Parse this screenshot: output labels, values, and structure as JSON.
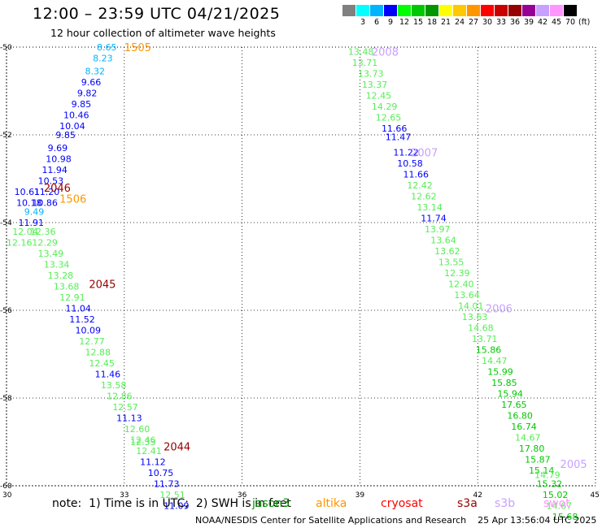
{
  "title": "12:00 – 23:59 UTC 04/21/2025",
  "subtitle": "12 hour collection of altimeter wave heights",
  "legend": {
    "unit": "(ft)",
    "bins": [
      {
        "label": "",
        "color": "#808080"
      },
      {
        "label": "3",
        "color": "#00ffff"
      },
      {
        "label": "6",
        "color": "#00b4ff"
      },
      {
        "label": "9",
        "color": "#0000ff"
      },
      {
        "label": "12",
        "color": "#00ff00"
      },
      {
        "label": "15",
        "color": "#00c800"
      },
      {
        "label": "18",
        "color": "#009600"
      },
      {
        "label": "21",
        "color": "#ffff00"
      },
      {
        "label": "24",
        "color": "#ffc800"
      },
      {
        "label": "27",
        "color": "#ff9600"
      },
      {
        "label": "30",
        "color": "#ff0000"
      },
      {
        "label": "33",
        "color": "#c80000"
      },
      {
        "label": "36",
        "color": "#960000"
      },
      {
        "label": "39",
        "color": "#960096"
      },
      {
        "label": "42",
        "color": "#c8a0ff"
      },
      {
        "label": "45",
        "color": "#ff96ff"
      },
      {
        "label": "70",
        "color": "#000000"
      }
    ]
  },
  "axes": {
    "x_ticks": [
      "30",
      "33",
      "36",
      "39",
      "42",
      "45"
    ],
    "y_ticks": [
      "-50",
      "-52",
      "-54",
      "-56",
      "-58",
      "-60"
    ],
    "x_values": [
      30,
      33,
      36,
      39,
      42,
      45
    ],
    "y_values": [
      -50,
      -52,
      -54,
      -56,
      -58,
      -60
    ]
  },
  "chart_data": {
    "type": "scatter",
    "xlim": [
      30,
      45
    ],
    "ylim": [
      -60,
      -50
    ],
    "grid": true,
    "pass_labels": [
      {
        "text": "1505",
        "lon": 33.0,
        "lat": -50.0,
        "color": "#ff9600"
      },
      {
        "text": "2046",
        "lon": 30.95,
        "lat": -53.2,
        "color": "#960000"
      },
      {
        "text": "1506",
        "lon": 31.35,
        "lat": -53.45,
        "color": "#ff9600"
      },
      {
        "text": "2045",
        "lon": 32.1,
        "lat": -55.4,
        "color": "#960000"
      },
      {
        "text": "2044",
        "lon": 34.0,
        "lat": -59.1,
        "color": "#960000"
      },
      {
        "text": "2008",
        "lon": 39.3,
        "lat": -50.1,
        "color": "#c8a0ff"
      },
      {
        "text": "2007",
        "lon": 40.3,
        "lat": -52.4,
        "color": "#c8a0ff"
      },
      {
        "text": "2006",
        "lon": 42.2,
        "lat": -55.95,
        "color": "#c8a0ff"
      },
      {
        "text": "2005",
        "lon": 44.1,
        "lat": -59.5,
        "color": "#c8a0ff"
      }
    ],
    "observations": [
      {
        "v": "8.65",
        "lon": 32.3,
        "lat": -50.0,
        "color": "#00b4ff"
      },
      {
        "v": "8.23",
        "lon": 32.2,
        "lat": -50.25,
        "color": "#00b4ff"
      },
      {
        "v": "8.32",
        "lon": 32.0,
        "lat": -50.55,
        "color": "#00b4ff"
      },
      {
        "v": "9.66",
        "lon": 31.9,
        "lat": -50.8,
        "color": "#0000ff"
      },
      {
        "v": "9.82",
        "lon": 31.8,
        "lat": -51.05,
        "color": "#0000ff"
      },
      {
        "v": "9.85",
        "lon": 31.65,
        "lat": -51.3,
        "color": "#0000ff"
      },
      {
        "v": "10.46",
        "lon": 31.45,
        "lat": -51.55,
        "color": "#0000ff"
      },
      {
        "v": "10.04",
        "lon": 31.35,
        "lat": -51.8,
        "color": "#0000ff"
      },
      {
        "v": "9.85",
        "lon": 31.25,
        "lat": -52.0,
        "color": "#0000ff"
      },
      {
        "v": "9.69",
        "lon": 31.05,
        "lat": -52.3,
        "color": "#0000ff"
      },
      {
        "v": "10.98",
        "lon": 31.0,
        "lat": -52.55,
        "color": "#0000ff"
      },
      {
        "v": "11.94",
        "lon": 30.9,
        "lat": -52.8,
        "color": "#0000ff"
      },
      {
        "v": "10.53",
        "lon": 30.8,
        "lat": -53.05,
        "color": "#0000ff"
      },
      {
        "v": "11.20",
        "lon": 30.7,
        "lat": -53.3,
        "color": "#0000ff"
      },
      {
        "v": "10.61",
        "lon": 30.2,
        "lat": -53.3,
        "color": "#0000ff"
      },
      {
        "v": "10.18",
        "lon": 30.25,
        "lat": -53.55,
        "color": "#0000ff"
      },
      {
        "v": "10.86",
        "lon": 30.65,
        "lat": -53.55,
        "color": "#0000ff"
      },
      {
        "v": "9.49",
        "lon": 30.45,
        "lat": -53.75,
        "color": "#00b4ff"
      },
      {
        "v": "11.91",
        "lon": 30.3,
        "lat": -54.0,
        "color": "#0000ff"
      },
      {
        "v": "12.04",
        "lon": 30.15,
        "lat": -54.2,
        "color": "#55ee55"
      },
      {
        "v": "12.36",
        "lon": 30.6,
        "lat": -54.2,
        "color": "#55ee55"
      },
      {
        "v": "12.16",
        "lon": 30.0,
        "lat": -54.45,
        "color": "#55ee55"
      },
      {
        "v": "12.29",
        "lon": 30.65,
        "lat": -54.45,
        "color": "#55ee55"
      },
      {
        "v": "13.49",
        "lon": 30.8,
        "lat": -54.7,
        "color": "#55ee55"
      },
      {
        "v": "13.34",
        "lon": 30.95,
        "lat": -54.95,
        "color": "#55ee55"
      },
      {
        "v": "13.28",
        "lon": 31.05,
        "lat": -55.2,
        "color": "#55ee55"
      },
      {
        "v": "13.68",
        "lon": 31.2,
        "lat": -55.45,
        "color": "#55ee55"
      },
      {
        "v": "12.91",
        "lon": 31.35,
        "lat": -55.7,
        "color": "#55ee55"
      },
      {
        "v": "11.04",
        "lon": 31.5,
        "lat": -55.95,
        "color": "#0000ff"
      },
      {
        "v": "11.52",
        "lon": 31.6,
        "lat": -56.2,
        "color": "#0000ff"
      },
      {
        "v": "10.09",
        "lon": 31.75,
        "lat": -56.45,
        "color": "#0000ff"
      },
      {
        "v": "12.77",
        "lon": 31.85,
        "lat": -56.7,
        "color": "#55ee55"
      },
      {
        "v": "12.88",
        "lon": 32.0,
        "lat": -56.95,
        "color": "#55ee55"
      },
      {
        "v": "12.45",
        "lon": 32.1,
        "lat": -57.2,
        "color": "#55ee55"
      },
      {
        "v": "11.46",
        "lon": 32.25,
        "lat": -57.45,
        "color": "#0000ff"
      },
      {
        "v": "13.58",
        "lon": 32.4,
        "lat": -57.7,
        "color": "#55ee55"
      },
      {
        "v": "12.86",
        "lon": 32.55,
        "lat": -57.95,
        "color": "#55ee55"
      },
      {
        "v": "12.57",
        "lon": 32.7,
        "lat": -58.2,
        "color": "#55ee55"
      },
      {
        "v": "11.13",
        "lon": 32.8,
        "lat": -58.45,
        "color": "#0000ff"
      },
      {
        "v": "12.60",
        "lon": 33.0,
        "lat": -58.7,
        "color": "#55ee55"
      },
      {
        "v": "12.46",
        "lon": 33.15,
        "lat": -58.95,
        "color": "#55ee55"
      },
      {
        "v": "12.33",
        "lon": 33.15,
        "lat": -59.0,
        "color": "#55ee55"
      },
      {
        "v": "12.41",
        "lon": 33.3,
        "lat": -59.2,
        "color": "#55ee55"
      },
      {
        "v": "11.12",
        "lon": 33.4,
        "lat": -59.45,
        "color": "#0000ff"
      },
      {
        "v": "10.75",
        "lon": 33.6,
        "lat": -59.7,
        "color": "#0000ff"
      },
      {
        "v": "11.73",
        "lon": 33.75,
        "lat": -59.95,
        "color": "#0000ff"
      },
      {
        "v": "12.51",
        "lon": 33.9,
        "lat": -60.2,
        "color": "#55ee55"
      },
      {
        "v": "11.09",
        "lon": 34.0,
        "lat": -60.45,
        "color": "#0000ff"
      },
      {
        "v": "13.48",
        "lon": 38.7,
        "lat": -50.1,
        "color": "#55ee55"
      },
      {
        "v": "13.71",
        "lon": 38.8,
        "lat": -50.35,
        "color": "#55ee55"
      },
      {
        "v": "13.73",
        "lon": 38.95,
        "lat": -50.6,
        "color": "#55ee55"
      },
      {
        "v": "13.37",
        "lon": 39.05,
        "lat": -50.85,
        "color": "#55ee55"
      },
      {
        "v": "12.45",
        "lon": 39.15,
        "lat": -51.1,
        "color": "#55ee55"
      },
      {
        "v": "14.29",
        "lon": 39.3,
        "lat": -51.35,
        "color": "#55ee55"
      },
      {
        "v": "12.65",
        "lon": 39.4,
        "lat": -51.6,
        "color": "#55ee55"
      },
      {
        "v": "11.66",
        "lon": 39.55,
        "lat": -51.85,
        "color": "#0000ff"
      },
      {
        "v": "11.47",
        "lon": 39.65,
        "lat": -52.05,
        "color": "#0000ff"
      },
      {
        "v": "11.22",
        "lon": 39.85,
        "lat": -52.4,
        "color": "#0000ff"
      },
      {
        "v": "10.58",
        "lon": 39.95,
        "lat": -52.65,
        "color": "#0000ff"
      },
      {
        "v": "11.66",
        "lon": 40.1,
        "lat": -52.9,
        "color": "#0000ff"
      },
      {
        "v": "12.42",
        "lon": 40.2,
        "lat": -53.15,
        "color": "#55ee55"
      },
      {
        "v": "12.62",
        "lon": 40.3,
        "lat": -53.4,
        "color": "#55ee55"
      },
      {
        "v": "13.14",
        "lon": 40.45,
        "lat": -53.65,
        "color": "#55ee55"
      },
      {
        "v": "11.74",
        "lon": 40.55,
        "lat": -53.9,
        "color": "#0000ff"
      },
      {
        "v": "13.97",
        "lon": 40.65,
        "lat": -54.15,
        "color": "#55ee55"
      },
      {
        "v": "13.64",
        "lon": 40.8,
        "lat": -54.4,
        "color": "#55ee55"
      },
      {
        "v": "13.62",
        "lon": 40.9,
        "lat": -54.65,
        "color": "#55ee55"
      },
      {
        "v": "13.55",
        "lon": 41.0,
        "lat": -54.9,
        "color": "#55ee55"
      },
      {
        "v": "12.39",
        "lon": 41.15,
        "lat": -55.15,
        "color": "#55ee55"
      },
      {
        "v": "12.40",
        "lon": 41.25,
        "lat": -55.4,
        "color": "#55ee55"
      },
      {
        "v": "13.64",
        "lon": 41.4,
        "lat": -55.65,
        "color": "#55ee55"
      },
      {
        "v": "14.01",
        "lon": 41.5,
        "lat": -55.9,
        "color": "#55ee55"
      },
      {
        "v": "13.63",
        "lon": 41.6,
        "lat": -56.15,
        "color": "#55ee55"
      },
      {
        "v": "14.68",
        "lon": 41.75,
        "lat": -56.4,
        "color": "#55ee55"
      },
      {
        "v": "13.71",
        "lon": 41.85,
        "lat": -56.65,
        "color": "#55ee55"
      },
      {
        "v": "15.86",
        "lon": 41.95,
        "lat": -56.9,
        "color": "#00c800"
      },
      {
        "v": "14.47",
        "lon": 42.1,
        "lat": -57.15,
        "color": "#55ee55"
      },
      {
        "v": "15.99",
        "lon": 42.25,
        "lat": -57.4,
        "color": "#00c800"
      },
      {
        "v": "15.85",
        "lon": 42.35,
        "lat": -57.65,
        "color": "#00c800"
      },
      {
        "v": "15.94",
        "lon": 42.5,
        "lat": -57.9,
        "color": "#00c800"
      },
      {
        "v": "17.65",
        "lon": 42.6,
        "lat": -58.15,
        "color": "#00c800"
      },
      {
        "v": "16.80",
        "lon": 42.75,
        "lat": -58.4,
        "color": "#00c800"
      },
      {
        "v": "16.74",
        "lon": 42.85,
        "lat": -58.65,
        "color": "#00c800"
      },
      {
        "v": "14.67",
        "lon": 42.95,
        "lat": -58.9,
        "color": "#55ee55"
      },
      {
        "v": "17.80",
        "lon": 43.05,
        "lat": -59.15,
        "color": "#00c800"
      },
      {
        "v": "15.87",
        "lon": 43.2,
        "lat": -59.4,
        "color": "#00c800"
      },
      {
        "v": "15.14",
        "lon": 43.3,
        "lat": -59.65,
        "color": "#00c800"
      },
      {
        "v": "14.79",
        "lon": 43.45,
        "lat": -59.75,
        "color": "#55ee55"
      },
      {
        "v": "15.32",
        "lon": 43.5,
        "lat": -59.95,
        "color": "#00c800"
      },
      {
        "v": "15.02",
        "lon": 43.65,
        "lat": -60.2,
        "color": "#00c800"
      },
      {
        "v": "14.67",
        "lon": 43.75,
        "lat": -60.45,
        "color": "#55ee55"
      },
      {
        "v": "15.68",
        "lon": 43.9,
        "lat": -60.7,
        "color": "#00c800"
      }
    ]
  },
  "footer": {
    "note": "note:  1) Time is in UTC;  2) SWH is in feet",
    "satellites": [
      {
        "name": "jason3",
        "color": "#009600"
      },
      {
        "name": "altika",
        "color": "#ff9600"
      },
      {
        "name": "cryosat",
        "color": "#ff0000"
      },
      {
        "name": "s3a",
        "color": "#960000"
      },
      {
        "name": "s3b",
        "color": "#c8a0ff"
      },
      {
        "name": "swot",
        "color": "#ff96ff"
      }
    ],
    "credit": "NOAA/NESDIS Center for Satellite Applications and Research    25 Apr 13:56:04 UTC 2025"
  }
}
